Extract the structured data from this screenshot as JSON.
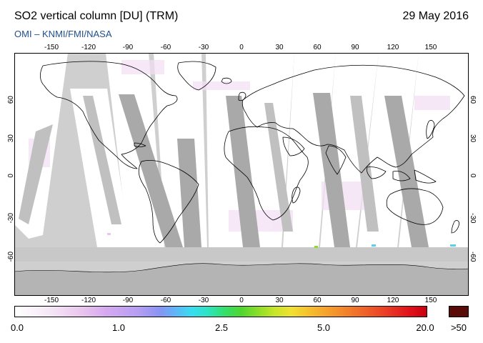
{
  "header": {
    "title": "SO2 vertical column [DU] (TRM)",
    "date": "29 May 2016",
    "source": "OMI  –  KNMI/FMI/NASA"
  },
  "map": {
    "longitude_labels": [
      "-150",
      "-120",
      "-90",
      "-60",
      "-30",
      "0",
      "30",
      "60",
      "90",
      "120",
      "150"
    ],
    "latitude_labels": [
      "60",
      "30",
      "0",
      "-30",
      "-60"
    ],
    "colors": {
      "ocean": "#cfcfcf",
      "land_band": "#a8a8a8",
      "antarctica": "#b4b4b4",
      "coast": "#000000"
    }
  },
  "colorbar": {
    "tick_labels": [
      "0.0",
      "1.0",
      "2.5",
      "5.0",
      "20.0"
    ],
    "overflow_label": ">50",
    "overflow_color": "#5a0a07"
  }
}
